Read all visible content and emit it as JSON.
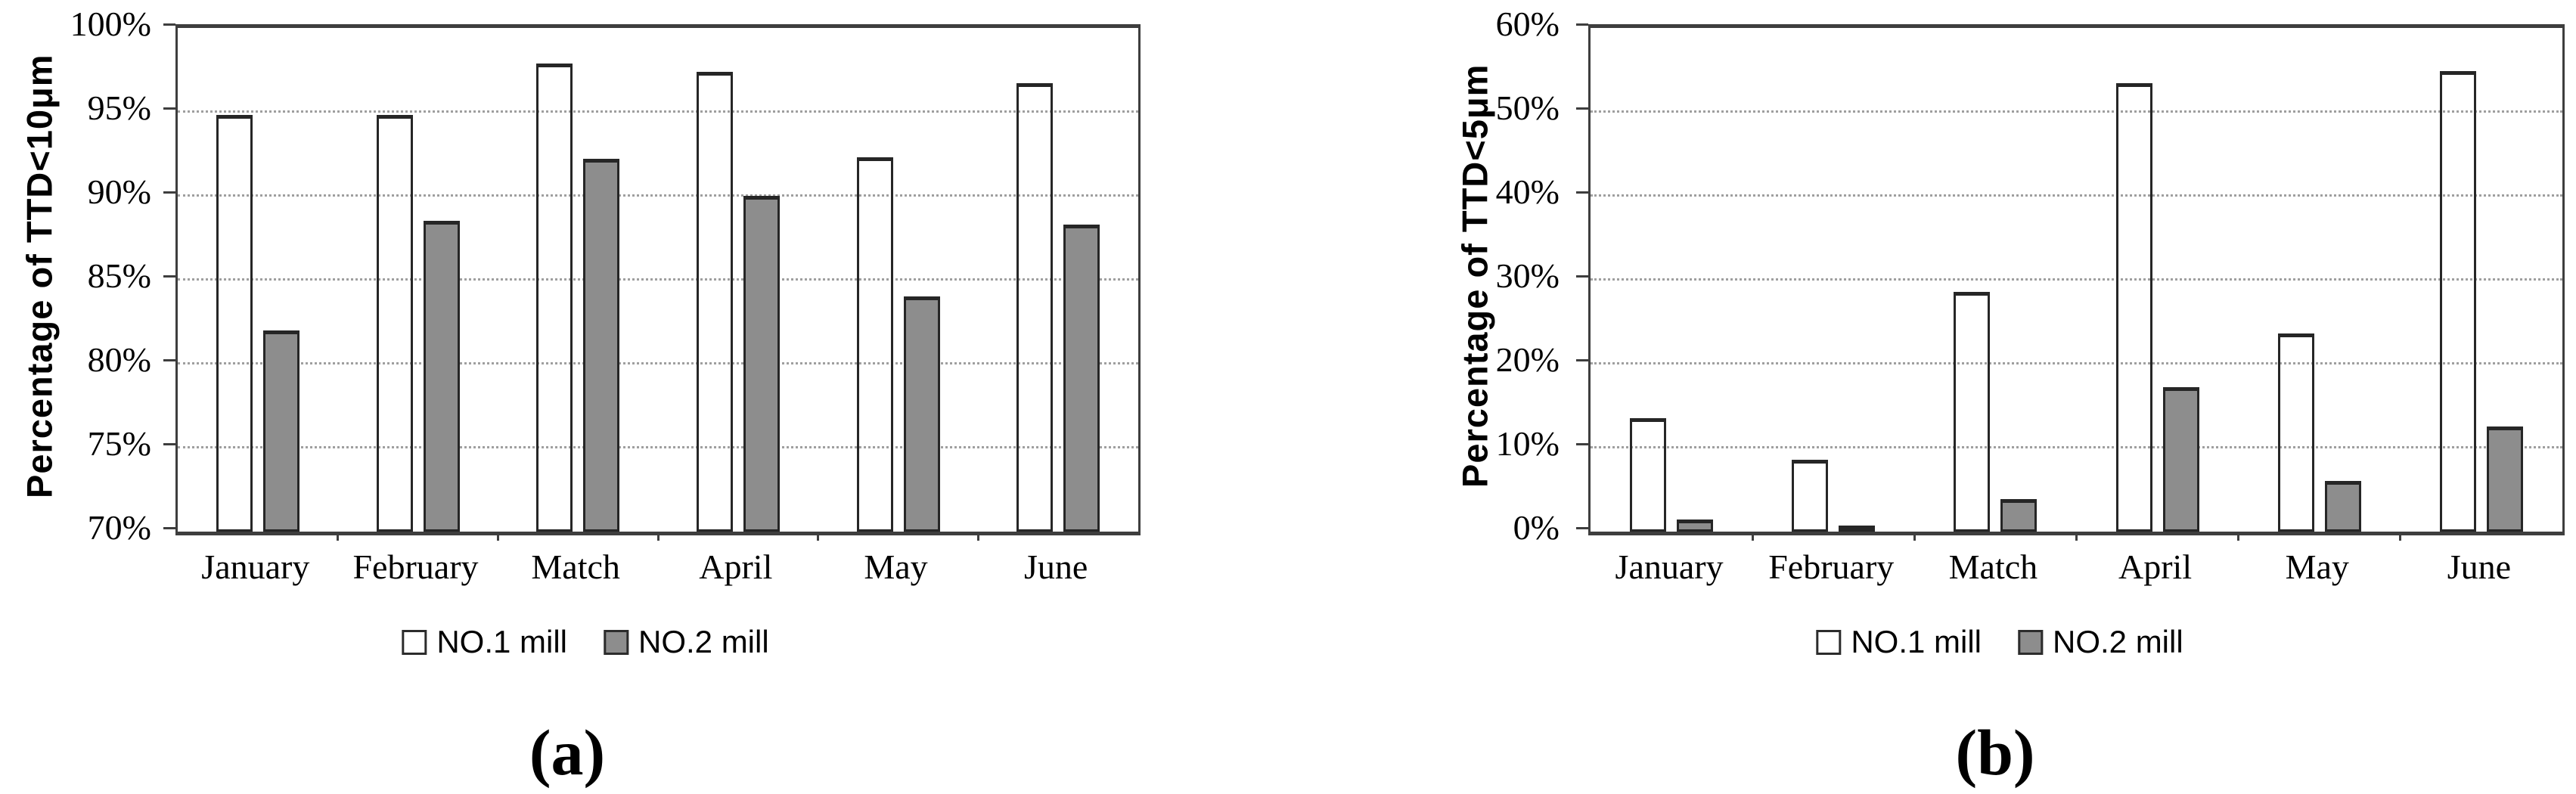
{
  "chart_data": [
    {
      "type": "bar",
      "panel_label": "(a)",
      "title": "",
      "xlabel": "",
      "ylabel": "Percentage of TTD<10μm",
      "categories": [
        "January",
        "February",
        "Match",
        "April",
        "May",
        "June"
      ],
      "series": [
        {
          "name": "NO.1 mill",
          "swatch_fill": "#ffffff",
          "bar_fill": "transparent",
          "values": [
            94.8,
            94.8,
            97.9,
            97.4,
            92.3,
            96.7
          ]
        },
        {
          "name": "NO.2 mill",
          "swatch_fill": "#8d8d8d",
          "bar_fill": "#8d8d8d",
          "values": [
            82.0,
            88.5,
            92.2,
            90.0,
            84.0,
            88.3
          ]
        }
      ],
      "ylim": [
        70,
        100
      ],
      "yticks": [
        {
          "value": 70,
          "label": "70%"
        },
        {
          "value": 75,
          "label": "75%"
        },
        {
          "value": 80,
          "label": "80%"
        },
        {
          "value": 85,
          "label": "85%"
        },
        {
          "value": 90,
          "label": "90%"
        },
        {
          "value": 95,
          "label": "95%"
        },
        {
          "value": 100,
          "label": "100%"
        }
      ],
      "grid": "horizontal-dotted",
      "legend_position": "bottom"
    },
    {
      "type": "bar",
      "panel_label": "(b)",
      "title": "",
      "xlabel": "",
      "ylabel": "Percentage of TTD<5μm",
      "categories": [
        "January",
        "February",
        "Match",
        "April",
        "May",
        "June"
      ],
      "series": [
        {
          "name": "NO.1 mill",
          "swatch_fill": "#ffffff",
          "bar_fill": "transparent",
          "values": [
            13.5,
            8.6,
            28.6,
            53.4,
            23.6,
            54.9
          ]
        },
        {
          "name": "NO.2 mill",
          "swatch_fill": "#8d8d8d",
          "bar_fill": "#8d8d8d",
          "values": [
            1.4,
            0.7,
            3.9,
            17.2,
            6.0,
            12.5
          ]
        }
      ],
      "ylim": [
        0,
        60
      ],
      "yticks": [
        {
          "value": 0,
          "label": "0%"
        },
        {
          "value": 10,
          "label": "10%"
        },
        {
          "value": 20,
          "label": "20%"
        },
        {
          "value": 30,
          "label": "30%"
        },
        {
          "value": 40,
          "label": "40%"
        },
        {
          "value": 50,
          "label": "50%"
        },
        {
          "value": 60,
          "label": "60%"
        }
      ],
      "grid": "horizontal-dotted",
      "legend_position": "bottom"
    }
  ],
  "styles": {
    "background": "#ffffff",
    "axis_color": "#3e3e3e",
    "grid_color": "#9f9f9f",
    "bar_border_color": "#262626",
    "no2_gray": "#8d8d8d",
    "text_color": "#000000"
  }
}
